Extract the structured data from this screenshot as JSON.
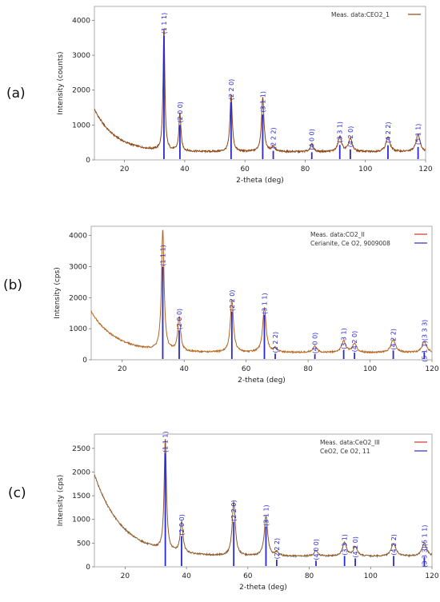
{
  "chart_data": [
    {
      "type": "line",
      "panel_label": "(a)",
      "xlabel": "2-theta (deg)",
      "ylabel": "Intensity (counts)",
      "xlim": [
        10,
        120
      ],
      "ylim": [
        0,
        4400
      ],
      "x_ticks": [
        "20",
        "40",
        "60",
        "80",
        "100",
        "120"
      ],
      "y_ticks": [
        "0",
        "1000",
        "2000",
        "3000",
        "4000"
      ],
      "legend": {
        "placement": "top-right",
        "entries": [
          {
            "label": "Meas. data:CEO2_1",
            "color": "#8b4513"
          }
        ]
      },
      "reflections": [
        {
          "x": 33.1,
          "y": 3550,
          "label": "(1 1 1)"
        },
        {
          "x": 38.4,
          "y": 1000,
          "label": "(2 0 0)"
        },
        {
          "x": 55.4,
          "y": 1650,
          "label": "(2 2 0)"
        },
        {
          "x": 65.9,
          "y": 1300,
          "label": "(3 1 1)"
        },
        {
          "x": 69.4,
          "y": 260,
          "label": "(2 2 2)"
        },
        {
          "x": 82.2,
          "y": 220,
          "label": "(4 0 0)"
        },
        {
          "x": 91.5,
          "y": 430,
          "label": "(3 3 1)"
        },
        {
          "x": 95.0,
          "y": 300,
          "label": "(4 2 0)"
        },
        {
          "x": 107.5,
          "y": 420,
          "label": "(4 2 2)"
        },
        {
          "x": 117.5,
          "y": 370,
          "label": "(5 1 1)"
        }
      ],
      "pattern": {
        "start": 1450,
        "baseline": 230,
        "decay": 7,
        "peaks": [
          {
            "x": 33.1,
            "h": 3550,
            "w": 0.35
          },
          {
            "x": 38.4,
            "h": 1100,
            "w": 0.4
          },
          {
            "x": 55.4,
            "h": 1650,
            "w": 0.45
          },
          {
            "x": 65.9,
            "h": 1550,
            "w": 0.5
          },
          {
            "x": 69.4,
            "h": 150,
            "w": 0.6
          },
          {
            "x": 82.2,
            "h": 220,
            "w": 0.6
          },
          {
            "x": 91.5,
            "h": 430,
            "w": 0.7
          },
          {
            "x": 95.0,
            "h": 380,
            "w": 0.7
          },
          {
            "x": 107.5,
            "h": 430,
            "w": 0.8
          },
          {
            "x": 117.5,
            "h": 500,
            "w": 0.8
          }
        ]
      }
    },
    {
      "type": "line",
      "panel_label": "(b)",
      "xlabel": "2-theta (deg)",
      "ylabel": "Intensity (cps)",
      "xlim": [
        10,
        120
      ],
      "ylim": [
        0,
        4300
      ],
      "x_ticks": [
        "20",
        "40",
        "60",
        "80",
        "100",
        "120"
      ],
      "y_ticks": [
        "0",
        "1000",
        "2000",
        "3000",
        "4000"
      ],
      "legend": {
        "placement": "top-right",
        "entries": [
          {
            "label": "Meas. data:CO2_II",
            "color": "#c0392b"
          },
          {
            "label": "Cerianite, Ce O2, 9009008",
            "color": "#2a2ad0"
          }
        ]
      },
      "reflections": [
        {
          "x": 33.1,
          "y": 3000,
          "label": "(1 1 1)"
        },
        {
          "x": 38.4,
          "y": 950,
          "label": "(2 0 0)"
        },
        {
          "x": 55.4,
          "y": 1550,
          "label": "(2 2 0)"
        },
        {
          "x": 65.9,
          "y": 1450,
          "label": "(3 1 1)"
        },
        {
          "x": 69.4,
          "y": 200,
          "label": "(2 2 2)"
        },
        {
          "x": 82.2,
          "y": 180,
          "label": "(4 0 0)"
        },
        {
          "x": 91.5,
          "y": 320,
          "label": "(3 3 1)"
        },
        {
          "x": 95.0,
          "y": 230,
          "label": "(4 2 0)"
        },
        {
          "x": 107.5,
          "y": 300,
          "label": "(4 2 2)"
        },
        {
          "x": 117.5,
          "y": 250,
          "label": "(5 1 1)(3 3 3)"
        }
      ],
      "pattern": {
        "start": 1550,
        "baseline": 230,
        "decay": 8,
        "peaks": [
          {
            "x": 33.1,
            "h": 3900,
            "w": 0.5
          },
          {
            "x": 38.4,
            "h": 1100,
            "w": 0.55
          },
          {
            "x": 55.4,
            "h": 1700,
            "w": 0.6
          },
          {
            "x": 65.9,
            "h": 1450,
            "w": 0.65
          },
          {
            "x": 69.4,
            "h": 120,
            "w": 0.7
          },
          {
            "x": 82.2,
            "h": 200,
            "w": 0.75
          },
          {
            "x": 91.5,
            "h": 380,
            "w": 0.8
          },
          {
            "x": 95.0,
            "h": 280,
            "w": 0.8
          },
          {
            "x": 107.5,
            "h": 400,
            "w": 0.9
          },
          {
            "x": 117.5,
            "h": 350,
            "w": 0.9
          }
        ]
      }
    },
    {
      "type": "line",
      "panel_label": "(c)",
      "xlabel": "2-theta (deg)",
      "ylabel": "Intensity (cps)",
      "xlim": [
        10,
        120
      ],
      "ylim": [
        0,
        2800
      ],
      "x_ticks": [
        "20",
        "40",
        "60",
        "80",
        "100",
        "120"
      ],
      "y_ticks": [
        "0",
        "500",
        "1000",
        "1500",
        "2000",
        "2500"
      ],
      "legend": {
        "placement": "top-right",
        "entries": [
          {
            "label": "Meas. data:CeO2_III",
            "color": "#c0392b"
          },
          {
            "label": "CeO2, Ce O2, 11",
            "color": "#2a2ad0"
          }
        ]
      },
      "reflections": [
        {
          "x": 33.1,
          "y": 2400,
          "label": "(1 1 1)"
        },
        {
          "x": 38.4,
          "y": 650,
          "label": "(2 0 0)"
        },
        {
          "x": 55.4,
          "y": 950,
          "label": "(2 2 0)"
        },
        {
          "x": 65.9,
          "y": 850,
          "label": "(3 1 1)"
        },
        {
          "x": 69.4,
          "y": 150,
          "label": "(2 2 2)"
        },
        {
          "x": 82.2,
          "y": 130,
          "label": "(4 0 0)"
        },
        {
          "x": 91.5,
          "y": 230,
          "label": "(3 3 1)"
        },
        {
          "x": 95.0,
          "y": 180,
          "label": "(4 2 0)"
        },
        {
          "x": 107.5,
          "y": 230,
          "label": "(4 2 2)"
        },
        {
          "x": 117.5,
          "y": 200,
          "label": "(3 3 3)(5 1 1)"
        }
      ],
      "pattern": {
        "start": 1950,
        "baseline": 220,
        "decay": 9,
        "peaks": [
          {
            "x": 33.1,
            "h": 2350,
            "w": 0.45
          },
          {
            "x": 38.4,
            "h": 650,
            "w": 0.55
          },
          {
            "x": 55.4,
            "h": 1150,
            "w": 0.6
          },
          {
            "x": 65.9,
            "h": 850,
            "w": 0.65
          },
          {
            "x": 69.4,
            "h": 80,
            "w": 0.7
          },
          {
            "x": 82.2,
            "h": 120,
            "w": 0.75
          },
          {
            "x": 91.5,
            "h": 280,
            "w": 0.8
          },
          {
            "x": 95.0,
            "h": 190,
            "w": 0.8
          },
          {
            "x": 107.5,
            "h": 270,
            "w": 0.9
          },
          {
            "x": 117.5,
            "h": 280,
            "w": 0.9
          }
        ]
      }
    }
  ]
}
